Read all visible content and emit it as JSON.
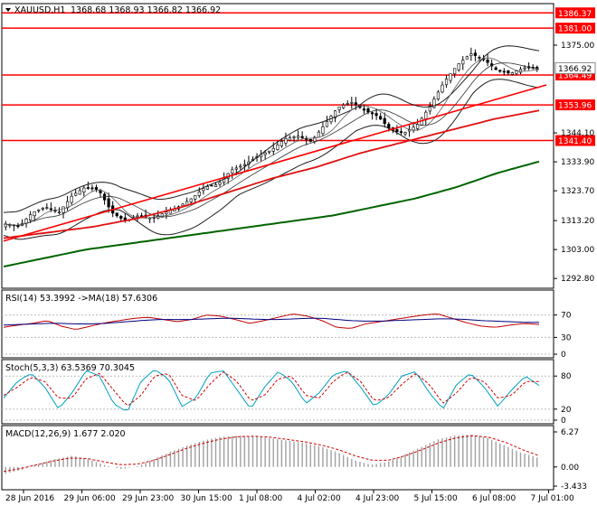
{
  "header": {
    "symbol": "XAUUSD,H1",
    "ohlc": "1368.68 1368.93 1366.82 1366.92"
  },
  "colors": {
    "hline": "#ff0000",
    "ma_long": "#006400",
    "ma_mid": "#e01010",
    "bands": "#1f1f1f",
    "candle_up": "#ffffff",
    "candle_down": "#000000",
    "rsi_line": "#c00000",
    "rsi_ma": "#000080",
    "stoch_main": "#00a0c0",
    "stoch_signal": "#d00000",
    "macd_hist": "#a0a0a0",
    "macd_signal": "#d00000"
  },
  "chart_data": [
    {
      "type": "candlestick",
      "panel": "price",
      "title": "XAUUSD,H1",
      "ylim": [
        1290.0,
        1389.0
      ],
      "yticks": [
        "1375.00",
        "1344.10",
        "1333.90",
        "1323.70",
        "1313.20",
        "1303.00",
        "1292.80"
      ],
      "horizontal_lines": [
        {
          "label": "1386.37",
          "value": 1386.37
        },
        {
          "label": "1381.00",
          "value": 1381.0
        },
        {
          "label": "1364.49",
          "value": 1364.49
        },
        {
          "label": "1353.96",
          "value": 1353.96
        },
        {
          "label": "1341.40",
          "value": 1341.4
        }
      ],
      "current_price": {
        "label": "1366.92",
        "value": 1366.92
      },
      "close_path": [
        1312,
        1311,
        1316,
        1318,
        1316,
        1322,
        1325,
        1324,
        1316,
        1313,
        1315,
        1314,
        1316,
        1318,
        1321,
        1325,
        1326,
        1331,
        1333,
        1336,
        1338,
        1342,
        1343,
        1341,
        1347,
        1353,
        1355,
        1352,
        1350,
        1345,
        1344,
        1347,
        1354,
        1362,
        1368,
        1372,
        1370,
        1366,
        1365,
        1367,
        1366.9
      ],
      "ma_long": [
        1297,
        1300,
        1303,
        1305,
        1307,
        1309,
        1311,
        1313,
        1315,
        1318,
        1321,
        1325,
        1330,
        1334
      ],
      "ma_mid": [
        1307,
        1309,
        1311,
        1314,
        1318,
        1323,
        1328,
        1332,
        1337,
        1341,
        1345,
        1349,
        1352
      ],
      "trend_line": [
        1306,
        1361
      ]
    },
    {
      "type": "line",
      "panel": "rsi",
      "title": "RSI(14) 53.3992  ->MA(18) 57.6306",
      "ylim": [
        0,
        100
      ],
      "yticks": [
        "70",
        "30",
        "0"
      ],
      "series": [
        {
          "values": [
            48,
            52,
            55,
            60,
            50,
            44,
            50,
            56,
            60,
            64,
            66,
            62,
            58,
            62,
            70,
            68,
            62,
            55,
            60,
            66,
            72,
            68,
            60,
            48,
            46,
            54,
            58,
            62,
            66,
            70,
            72,
            64,
            56,
            50,
            48,
            52,
            55,
            53
          ]
        },
        {
          "values": [
            52,
            53,
            54,
            55,
            55,
            54,
            54,
            55,
            57,
            59,
            61,
            62,
            62,
            62,
            63,
            64,
            64,
            63,
            62,
            62,
            63,
            64,
            64,
            62,
            60,
            59,
            59,
            60,
            61,
            62,
            63,
            63,
            62,
            60,
            59,
            58,
            57,
            57
          ]
        }
      ]
    },
    {
      "type": "line",
      "panel": "stochastic",
      "title": "Stoch(5,3,3) 63.5369 70.3045",
      "ylim": [
        0,
        100
      ],
      "yticks": [
        "80",
        "20",
        "0"
      ],
      "series": [
        {
          "values": [
            40,
            70,
            85,
            60,
            20,
            50,
            90,
            80,
            30,
            15,
            70,
            92,
            75,
            25,
            40,
            85,
            90,
            55,
            20,
            60,
            88,
            70,
            30,
            50,
            82,
            90,
            60,
            25,
            45,
            80,
            88,
            50,
            20,
            65,
            85,
            60,
            25,
            55,
            80,
            63
          ]
        },
        {
          "values": [
            45,
            60,
            78,
            70,
            40,
            40,
            75,
            85,
            55,
            25,
            45,
            80,
            85,
            45,
            35,
            65,
            88,
            70,
            35,
            45,
            75,
            80,
            45,
            40,
            70,
            88,
            70,
            35,
            40,
            65,
            85,
            65,
            30,
            50,
            78,
            70,
            40,
            45,
            70,
            70
          ]
        }
      ]
    },
    {
      "type": "bar",
      "panel": "macd",
      "title": "MACD(12,26,9) 1.677 2.020",
      "ylim": [
        -3.433,
        6.27
      ],
      "yticks": [
        "6.27",
        "0.00",
        "-3.433"
      ],
      "histogram": [
        -1.2,
        -0.5,
        0.6,
        1.4,
        2.0,
        1.4,
        0.3,
        -0.4,
        0.2,
        1.5,
        2.8,
        3.9,
        4.8,
        5.4,
        5.6,
        5.5,
        5.1,
        4.7,
        4.3,
        3.6,
        2.6,
        1.2,
        0.4,
        0.9,
        2.2,
        3.5,
        4.9,
        5.6,
        5.8,
        5.2,
        3.9,
        2.6,
        1.7
      ],
      "signal": [
        -0.8,
        -0.3,
        0.4,
        1.1,
        1.6,
        1.5,
        0.9,
        0.4,
        0.5,
        1.2,
        2.3,
        3.4,
        4.3,
        5.0,
        5.4,
        5.5,
        5.3,
        4.9,
        4.5,
        3.9,
        3.1,
        2.0,
        1.2,
        1.2,
        2.0,
        3.1,
        4.3,
        5.2,
        5.6,
        5.3,
        4.4,
        3.1,
        2.0
      ]
    }
  ],
  "x_axis": {
    "labels": [
      "28 Jun 2016",
      "29 Jun 06:00",
      "29 Jun 23:00",
      "30 Jun 15:00",
      "1 Jul 08:00",
      "4 Jul 02:00",
      "4 Jul 23:00",
      "5 Jul 15:00",
      "6 Jul 08:00",
      "7 Jul 01:00"
    ]
  }
}
